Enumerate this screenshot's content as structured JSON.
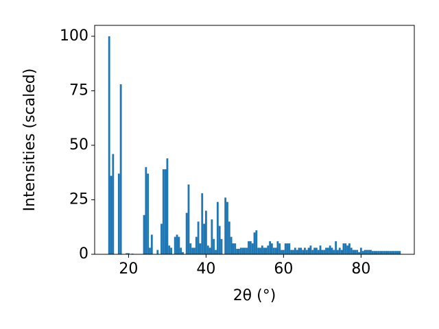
{
  "chart_data": {
    "type": "histogram",
    "xlabel": "2θ (°)",
    "ylabel": "Intensities (scaled)",
    "color": "#1f77b4",
    "bins": [
      14.75,
      15.25,
      15.75,
      16.25,
      16.75,
      17.25,
      17.75,
      18.25,
      18.75,
      19.25,
      19.75,
      20.25,
      20.75,
      21.25,
      21.75,
      22.25,
      22.75,
      23.25,
      23.75,
      24.25,
      24.75,
      25.25,
      25.75,
      26.25,
      26.75,
      27.25,
      27.75,
      28.25,
      28.75,
      29.25,
      29.75,
      30.25,
      30.75,
      31.25,
      31.75,
      32.25,
      32.75,
      33.25,
      33.75,
      34.25,
      34.75,
      35.25,
      35.75,
      36.25,
      36.75,
      37.25,
      37.75,
      38.25,
      38.75,
      39.25,
      39.75,
      40.25,
      40.75,
      41.25,
      41.75,
      42.25,
      42.75,
      43.25,
      43.75,
      44.25,
      44.75,
      45.25,
      45.75,
      46.25,
      46.75,
      47.25,
      47.75,
      48.25,
      48.75,
      49.25,
      49.75,
      50.25,
      50.75,
      51.25,
      51.75,
      52.25,
      52.75,
      53.25,
      53.75,
      54.25,
      54.75,
      55.25,
      55.75,
      56.25,
      56.75,
      57.25,
      57.75,
      58.25,
      58.75,
      59.25,
      59.75,
      60.25,
      60.75,
      61.25,
      61.75,
      62.25,
      62.75,
      63.25,
      63.75,
      64.25,
      64.75,
      65.25,
      65.75,
      66.25,
      66.75,
      67.25,
      67.75,
      68.25,
      68.75,
      69.25,
      69.75,
      70.25,
      70.75,
      71.25,
      71.75,
      72.25,
      72.75,
      73.25,
      73.75,
      74.25,
      74.75,
      75.25,
      75.75,
      76.25,
      76.75,
      77.25,
      77.75,
      78.25,
      78.75,
      79.25,
      79.75,
      80.25,
      80.75,
      81.25,
      81.75,
      82.25,
      82.75,
      83.25,
      83.75,
      84.25,
      84.75,
      85.25,
      85.75,
      86.25,
      86.75,
      87.25,
      87.75,
      88.25,
      88.75,
      89.25,
      89.75,
      90.25
    ],
    "values": [
      100,
      36,
      46,
      0,
      0,
      37,
      78,
      0,
      0,
      0.5,
      0.5,
      0,
      0.3,
      0,
      0,
      0,
      0,
      0,
      18,
      40,
      37,
      3,
      9,
      0,
      0,
      2,
      0,
      14,
      39,
      39,
      44,
      4,
      3,
      0,
      8,
      9,
      8,
      3,
      1,
      0,
      19,
      32,
      5,
      3,
      3,
      8,
      15,
      5,
      28,
      14,
      20,
      4,
      3,
      16,
      7,
      2,
      24,
      13,
      7,
      0,
      26,
      24,
      15,
      8,
      5,
      5,
      2.5,
      2.5,
      3,
      3,
      3,
      3,
      6,
      6,
      5,
      10,
      11,
      3,
      3,
      4,
      3,
      3,
      4,
      6,
      5,
      3,
      3,
      6,
      5,
      2,
      2,
      5,
      5,
      5,
      2,
      2,
      3,
      2,
      3,
      3,
      2,
      3,
      2,
      3,
      4,
      2,
      3,
      3,
      2,
      4,
      2,
      2,
      3,
      3,
      4,
      3,
      2,
      6,
      2,
      3,
      2,
      5,
      5,
      4,
      5,
      3,
      2,
      2,
      2,
      1,
      3,
      1.5,
      2,
      2,
      2,
      2,
      1.5,
      1.5,
      1.5,
      1.5,
      1.5,
      1.5,
      1.5,
      1.5,
      1.5,
      1.5,
      1.5,
      1.5,
      1.5,
      1.5,
      1.5
    ],
    "xlim": [
      11.25,
      93.75
    ],
    "ylim": [
      0,
      105
    ],
    "xticks": [
      20,
      40,
      60,
      80
    ],
    "yticks": [
      0,
      25,
      50,
      75,
      100
    ]
  }
}
